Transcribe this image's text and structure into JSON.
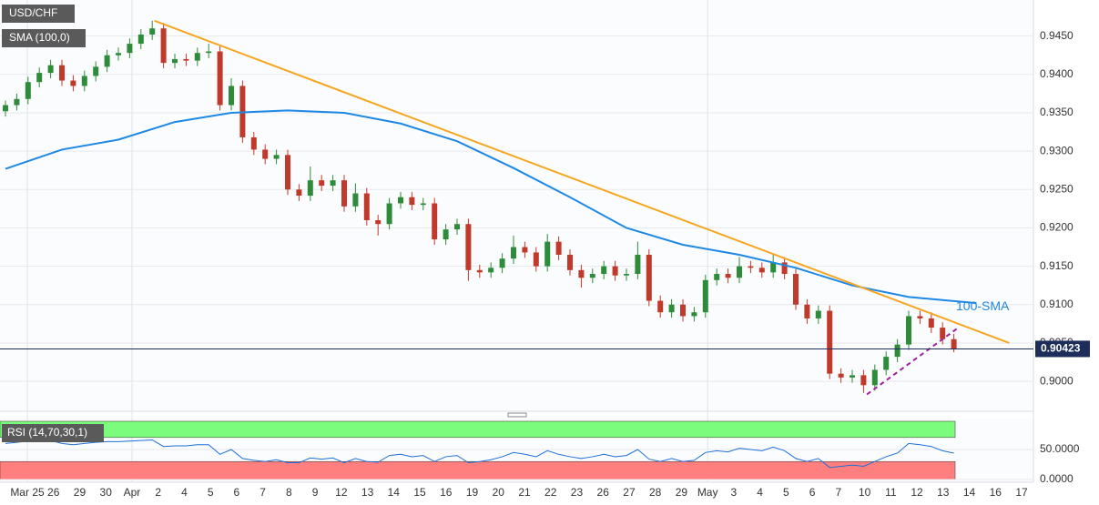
{
  "chart_data": {
    "type": "candlestick",
    "title": "USD/CHF",
    "indicator_label": "SMA (100,0)",
    "up_color": "#2e8b3a",
    "down_color": "#c0392b",
    "categories": [
      "Mar 25",
      "26",
      "29",
      "30",
      "Apr",
      "2",
      "4",
      "5",
      "6",
      "7",
      "8",
      "9",
      "12",
      "13",
      "14",
      "15",
      "16",
      "19",
      "20",
      "21",
      "22",
      "23",
      "26",
      "27",
      "28",
      "29",
      "May",
      "3",
      "4",
      "5",
      "6",
      "7",
      "10",
      "11",
      "12",
      "13",
      "14",
      "16",
      "17"
    ],
    "candles": [
      [
        0.9352,
        0.9366,
        0.9345,
        0.936
      ],
      [
        0.936,
        0.9375,
        0.9353,
        0.9368
      ],
      [
        0.9368,
        0.9397,
        0.9361,
        0.939
      ],
      [
        0.939,
        0.9409,
        0.9383,
        0.9402
      ],
      [
        0.9402,
        0.9419,
        0.9395,
        0.9412
      ],
      [
        0.9412,
        0.9419,
        0.9385,
        0.9392
      ],
      [
        0.9392,
        0.9399,
        0.9378,
        0.9385
      ],
      [
        0.9385,
        0.9405,
        0.9378,
        0.9398
      ],
      [
        0.9398,
        0.9417,
        0.9391,
        0.941
      ],
      [
        0.941,
        0.9432,
        0.9403,
        0.9425
      ],
      [
        0.9425,
        0.9435,
        0.9418,
        0.9428
      ],
      [
        0.9428,
        0.9447,
        0.9421,
        0.944
      ],
      [
        0.944,
        0.9459,
        0.9433,
        0.9452
      ],
      [
        0.9452,
        0.947,
        0.9445,
        0.946
      ],
      [
        0.946,
        0.9467,
        0.9408,
        0.9415
      ],
      [
        0.9415,
        0.9427,
        0.9408,
        0.942
      ],
      [
        0.942,
        0.9427,
        0.9411,
        0.9418
      ],
      [
        0.9418,
        0.9435,
        0.9411,
        0.9428
      ],
      [
        0.9428,
        0.944,
        0.9421,
        0.943
      ],
      [
        0.943,
        0.9437,
        0.9353,
        0.936
      ],
      [
        0.936,
        0.9395,
        0.9353,
        0.9385
      ],
      [
        0.9385,
        0.9392,
        0.9311,
        0.9318
      ],
      [
        0.9318,
        0.9325,
        0.9295,
        0.9302
      ],
      [
        0.9302,
        0.9309,
        0.9283,
        0.929
      ],
      [
        0.929,
        0.9302,
        0.9283,
        0.9295
      ],
      [
        0.9295,
        0.9302,
        0.9243,
        0.925
      ],
      [
        0.925,
        0.9257,
        0.9235,
        0.9242
      ],
      [
        0.9242,
        0.928,
        0.9235,
        0.9262
      ],
      [
        0.9262,
        0.9269,
        0.9248,
        0.9255
      ],
      [
        0.9255,
        0.9269,
        0.9248,
        0.9262
      ],
      [
        0.9262,
        0.9269,
        0.9221,
        0.9228
      ],
      [
        0.9228,
        0.9258,
        0.9221,
        0.9245
      ],
      [
        0.9245,
        0.9252,
        0.9203,
        0.921
      ],
      [
        0.921,
        0.9217,
        0.919,
        0.9205
      ],
      [
        0.9205,
        0.9239,
        0.9198,
        0.9232
      ],
      [
        0.9232,
        0.9247,
        0.9225,
        0.924
      ],
      [
        0.924,
        0.9247,
        0.9223,
        0.923
      ],
      [
        0.923,
        0.9239,
        0.9223,
        0.9232
      ],
      [
        0.9232,
        0.9239,
        0.9178,
        0.9185
      ],
      [
        0.9185,
        0.9205,
        0.9178,
        0.9198
      ],
      [
        0.9198,
        0.9212,
        0.9191,
        0.9205
      ],
      [
        0.9205,
        0.9212,
        0.9131,
        0.9145
      ],
      [
        0.9145,
        0.9152,
        0.9135,
        0.9142
      ],
      [
        0.9142,
        0.9155,
        0.9135,
        0.9148
      ],
      [
        0.9148,
        0.9167,
        0.9141,
        0.916
      ],
      [
        0.916,
        0.919,
        0.9153,
        0.9175
      ],
      [
        0.9175,
        0.9182,
        0.9161,
        0.9168
      ],
      [
        0.9168,
        0.9175,
        0.9143,
        0.915
      ],
      [
        0.915,
        0.9192,
        0.9143,
        0.9182
      ],
      [
        0.9182,
        0.9189,
        0.9158,
        0.9165
      ],
      [
        0.9165,
        0.9172,
        0.9138,
        0.9145
      ],
      [
        0.9145,
        0.9152,
        0.9122,
        0.9135
      ],
      [
        0.9135,
        0.9147,
        0.9128,
        0.914
      ],
      [
        0.914,
        0.9157,
        0.9133,
        0.915
      ],
      [
        0.915,
        0.9157,
        0.9131,
        0.9138
      ],
      [
        0.9138,
        0.9147,
        0.9131,
        0.914
      ],
      [
        0.914,
        0.9182,
        0.9133,
        0.9165
      ],
      [
        0.9165,
        0.9172,
        0.9098,
        0.9105
      ],
      [
        0.9105,
        0.9112,
        0.9083,
        0.909
      ],
      [
        0.909,
        0.9107,
        0.9083,
        0.91
      ],
      [
        0.91,
        0.9107,
        0.9078,
        0.9085
      ],
      [
        0.9085,
        0.9097,
        0.9078,
        0.909
      ],
      [
        0.909,
        0.9139,
        0.9083,
        0.9132
      ],
      [
        0.9132,
        0.9147,
        0.9125,
        0.914
      ],
      [
        0.914,
        0.9147,
        0.9128,
        0.9135
      ],
      [
        0.9135,
        0.9162,
        0.9128,
        0.915
      ],
      [
        0.915,
        0.9157,
        0.9141,
        0.9148
      ],
      [
        0.9148,
        0.9155,
        0.9135,
        0.9142
      ],
      [
        0.9142,
        0.9165,
        0.9135,
        0.9155
      ],
      [
        0.9155,
        0.9162,
        0.9133,
        0.914
      ],
      [
        0.914,
        0.9147,
        0.9093,
        0.91
      ],
      [
        0.91,
        0.9107,
        0.9075,
        0.9082
      ],
      [
        0.9082,
        0.9099,
        0.9075,
        0.9092
      ],
      [
        0.9092,
        0.9099,
        0.9003,
        0.901
      ],
      [
        0.901,
        0.9017,
        0.8998,
        0.9005
      ],
      [
        0.9005,
        0.9015,
        0.8998,
        0.9008
      ],
      [
        0.9008,
        0.9015,
        0.8985,
        0.8995
      ],
      [
        0.8995,
        0.9022,
        0.8988,
        0.9015
      ],
      [
        0.9015,
        0.9039,
        0.9008,
        0.9032
      ],
      [
        0.9032,
        0.9055,
        0.9025,
        0.9048
      ],
      [
        0.9048,
        0.9092,
        0.9041,
        0.9085
      ],
      [
        0.9085,
        0.9092,
        0.9075,
        0.9082
      ],
      [
        0.9082,
        0.909,
        0.9063,
        0.907
      ],
      [
        0.907,
        0.9077,
        0.9048,
        0.9055
      ],
      [
        0.9055,
        0.9062,
        0.9038,
        0.90423
      ]
    ],
    "ylim": [
      0.8961,
      0.9497
    ],
    "yticks": [
      {
        "value": 0.9,
        "label": "0.9000"
      },
      {
        "value": 0.905,
        "label": "0.9050"
      },
      {
        "value": 0.91,
        "label": "0.9100"
      },
      {
        "value": 0.915,
        "label": "0.9150"
      },
      {
        "value": 0.92,
        "label": "0.9200"
      },
      {
        "value": 0.925,
        "label": "0.9250"
      },
      {
        "value": 0.93,
        "label": "0.9300"
      },
      {
        "value": 0.935,
        "label": "0.9350"
      },
      {
        "value": 0.94,
        "label": "0.9400"
      },
      {
        "value": 0.945,
        "label": "0.9450"
      }
    ],
    "last_price": 0.90423,
    "sma": {
      "name": "100-SMA",
      "color": "#1e88e5",
      "x": [
        0,
        5,
        10,
        15,
        20,
        25,
        30,
        35,
        40,
        45,
        50,
        55,
        60,
        65,
        70,
        75,
        80,
        86
      ],
      "values": [
        0.9277,
        0.9302,
        0.9315,
        0.9338,
        0.935,
        0.9353,
        0.935,
        0.9336,
        0.9313,
        0.9278,
        0.924,
        0.92,
        0.9178,
        0.9165,
        0.9148,
        0.9125,
        0.911,
        0.9102
      ]
    },
    "trendlines": [
      {
        "color": "#f5a623",
        "x": [
          13.2,
          88.9
        ],
        "values": [
          0.947,
          0.905
        ]
      },
      {
        "color": "#a020a0",
        "dashed": true,
        "x": [
          76.3,
          84.4
        ],
        "values": [
          0.8983,
          0.907
        ]
      }
    ],
    "rsi": {
      "label": "RSI (14,70,30,1)",
      "color": "#1e6fd9",
      "ylim": [
        -4.5,
        100
      ],
      "yticks": [
        {
          "value": 0,
          "label": "0.0000"
        },
        {
          "value": 50,
          "label": "50.0000"
        }
      ],
      "overbought": 70,
      "oversold": 30,
      "values": [
        60,
        62,
        64,
        65,
        65,
        60,
        58,
        60,
        62,
        63,
        63,
        64,
        65,
        66,
        55,
        56,
        56,
        58,
        58,
        42,
        50,
        35,
        32,
        30,
        33,
        28,
        28,
        36,
        34,
        36,
        28,
        35,
        30,
        29,
        40,
        42,
        38,
        40,
        30,
        38,
        40,
        28,
        30,
        33,
        38,
        45,
        42,
        38,
        48,
        42,
        38,
        35,
        38,
        42,
        38,
        40,
        50,
        34,
        30,
        35,
        30,
        32,
        45,
        48,
        46,
        52,
        50,
        48,
        54,
        48,
        35,
        30,
        35,
        20,
        22,
        24,
        22,
        30,
        38,
        44,
        60,
        58,
        55,
        48,
        44
      ]
    }
  }
}
